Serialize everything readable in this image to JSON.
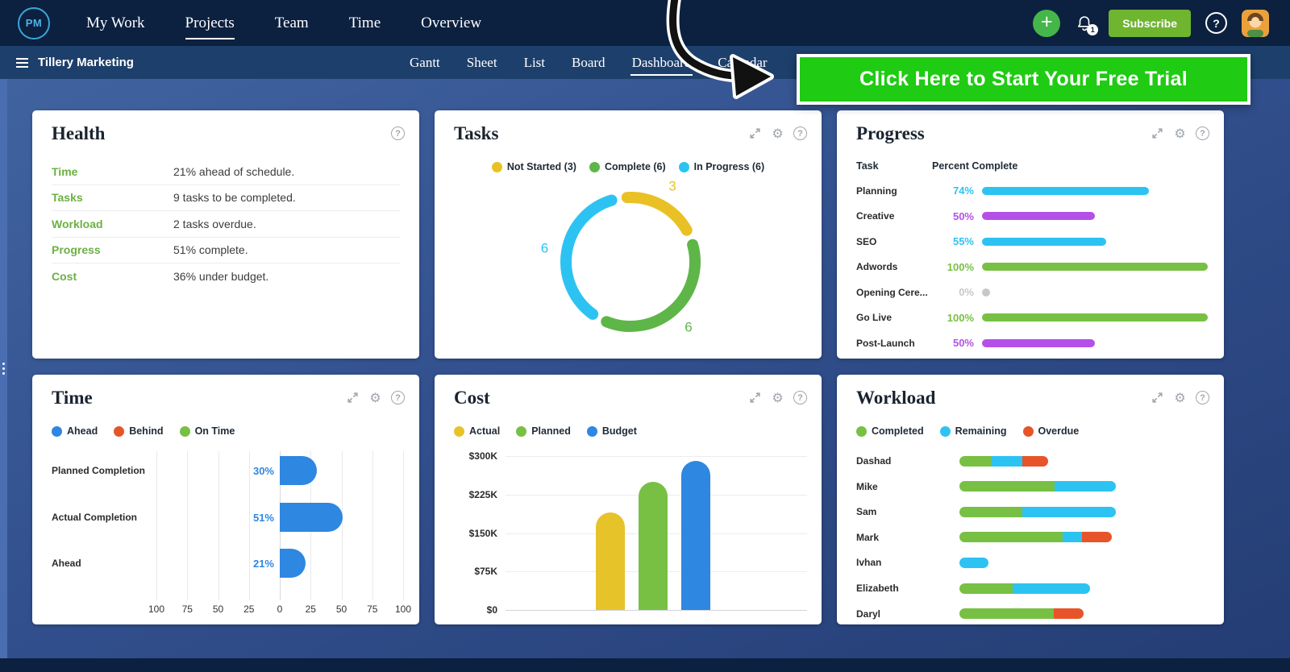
{
  "topnav": {
    "logo_text": "PM",
    "items": [
      {
        "label": "My Work",
        "active": false
      },
      {
        "label": "Projects",
        "active": true
      },
      {
        "label": "Team",
        "active": false
      },
      {
        "label": "Time",
        "active": false
      },
      {
        "label": "Overview",
        "active": false
      }
    ],
    "notification_badge": "1",
    "subscribe_label": "Subscribe"
  },
  "projectbar": {
    "title": "Tillery Marketing",
    "tabs": [
      {
        "label": "Gantt",
        "active": false
      },
      {
        "label": "Sheet",
        "active": false
      },
      {
        "label": "List",
        "active": false
      },
      {
        "label": "Board",
        "active": false
      },
      {
        "label": "Dashboard",
        "active": true
      },
      {
        "label": "Calendar",
        "active": false
      }
    ]
  },
  "promo_banner": {
    "text": "Click Here to Start Your Free Trial",
    "bg_color": "#1fcb13"
  },
  "health": {
    "title": "Health",
    "label_color": "#6cb043",
    "rows": [
      {
        "label": "Time",
        "value": "21% ahead of schedule."
      },
      {
        "label": "Tasks",
        "value": "9 tasks to be completed."
      },
      {
        "label": "Workload",
        "value": "2 tasks overdue."
      },
      {
        "label": "Progress",
        "value": "51% complete."
      },
      {
        "label": "Cost",
        "value": "36% under budget."
      }
    ]
  },
  "tasks": {
    "title": "Tasks",
    "chart_data": {
      "type": "pie",
      "title": "Tasks",
      "legend": [
        {
          "label": "Not Started (3)",
          "color": "#eac125"
        },
        {
          "label": "Complete (6)",
          "color": "#5eb648"
        },
        {
          "label": "In Progress (6)",
          "color": "#2cc3f2"
        }
      ],
      "segments": [
        {
          "label": "Not Started",
          "value": 3,
          "color": "#eac125"
        },
        {
          "label": "Complete",
          "value": 6,
          "color": "#5eb648"
        },
        {
          "label": "In Progress",
          "value": 6,
          "color": "#2cc3f2"
        }
      ]
    }
  },
  "progress": {
    "title": "Progress",
    "columns": {
      "task": "Task",
      "percent": "Percent Complete"
    },
    "chart_data": {
      "type": "bar",
      "orientation": "horizontal",
      "unit": "%",
      "rows": [
        {
          "task": "Planning",
          "percent": 74,
          "color": "#2cc3f2"
        },
        {
          "task": "Creative",
          "percent": 50,
          "color": "#b44fe8"
        },
        {
          "task": "SEO",
          "percent": 55,
          "color": "#2cc3f2"
        },
        {
          "task": "Adwords",
          "percent": 100,
          "color": "#77c043"
        },
        {
          "task": "Opening Cere...",
          "percent": 0,
          "color": "#c8c8c8"
        },
        {
          "task": "Go Live",
          "percent": 100,
          "color": "#77c043"
        },
        {
          "task": "Post-Launch",
          "percent": 50,
          "color": "#b44fe8"
        }
      ]
    }
  },
  "time": {
    "title": "Time",
    "legend": [
      {
        "label": "Ahead",
        "color": "#2e87e0"
      },
      {
        "label": "Behind",
        "color": "#e8542a"
      },
      {
        "label": "On Time",
        "color": "#77c043"
      }
    ],
    "chart_data": {
      "type": "bar",
      "orientation": "horizontal",
      "categories": [
        "Planned Completion",
        "Actual Completion",
        "Ahead"
      ],
      "values": [
        30,
        51,
        21
      ],
      "value_labels": [
        "30%",
        "51%",
        "21%"
      ],
      "bar_color": "#2e87e0",
      "xlim": [
        -100,
        100
      ],
      "axis_tick_labels": [
        "100",
        "75",
        "50",
        "25",
        "0",
        "25",
        "50",
        "75",
        "100"
      ]
    }
  },
  "cost": {
    "title": "Cost",
    "legend": [
      {
        "label": "Actual",
        "color": "#e7c32a"
      },
      {
        "label": "Planned",
        "color": "#77c043"
      },
      {
        "label": "Budget",
        "color": "#2e87e0"
      }
    ],
    "chart_data": {
      "type": "bar",
      "categories": [
        "Actual",
        "Planned",
        "Budget"
      ],
      "values_k": [
        190,
        250,
        290
      ],
      "colors": [
        "#e7c32a",
        "#77c043",
        "#2e87e0"
      ],
      "ylim_k": [
        0,
        300
      ],
      "y_tick_labels": [
        "$0",
        "$75K",
        "$150K",
        "$225K",
        "$300K"
      ],
      "y_tick_values_k": [
        0,
        75,
        150,
        225,
        300
      ]
    }
  },
  "workload": {
    "title": "Workload",
    "legend": [
      {
        "label": "Completed",
        "color": "#77c043"
      },
      {
        "label": "Remaining",
        "color": "#2cc3f2"
      },
      {
        "label": "Overdue",
        "color": "#e8542a"
      }
    ],
    "chart_data": {
      "type": "bar",
      "orientation": "horizontal",
      "stacked": true,
      "series_order": [
        "completed",
        "remaining",
        "overdue"
      ],
      "colors": {
        "completed": "#77c043",
        "remaining": "#2cc3f2",
        "overdue": "#e8542a"
      },
      "rows": [
        {
          "name": "Dashad",
          "completed": 5,
          "remaining": 4.8,
          "overdue": 4
        },
        {
          "name": "Mike",
          "completed": 14.8,
          "remaining": 9.5,
          "overdue": 0
        },
        {
          "name": "Sam",
          "completed": 9.8,
          "remaining": 14.5,
          "overdue": 0
        },
        {
          "name": "Mark",
          "completed": 16,
          "remaining": 3,
          "overdue": 4.6
        },
        {
          "name": "Ivhan",
          "completed": 0,
          "remaining": 4.5,
          "overdue": 0
        },
        {
          "name": "Elizabeth",
          "completed": 8.2,
          "remaining": 12,
          "overdue": 0
        },
        {
          "name": "Daryl",
          "completed": 14.6,
          "remaining": 0,
          "overdue": 4.6
        }
      ]
    }
  }
}
